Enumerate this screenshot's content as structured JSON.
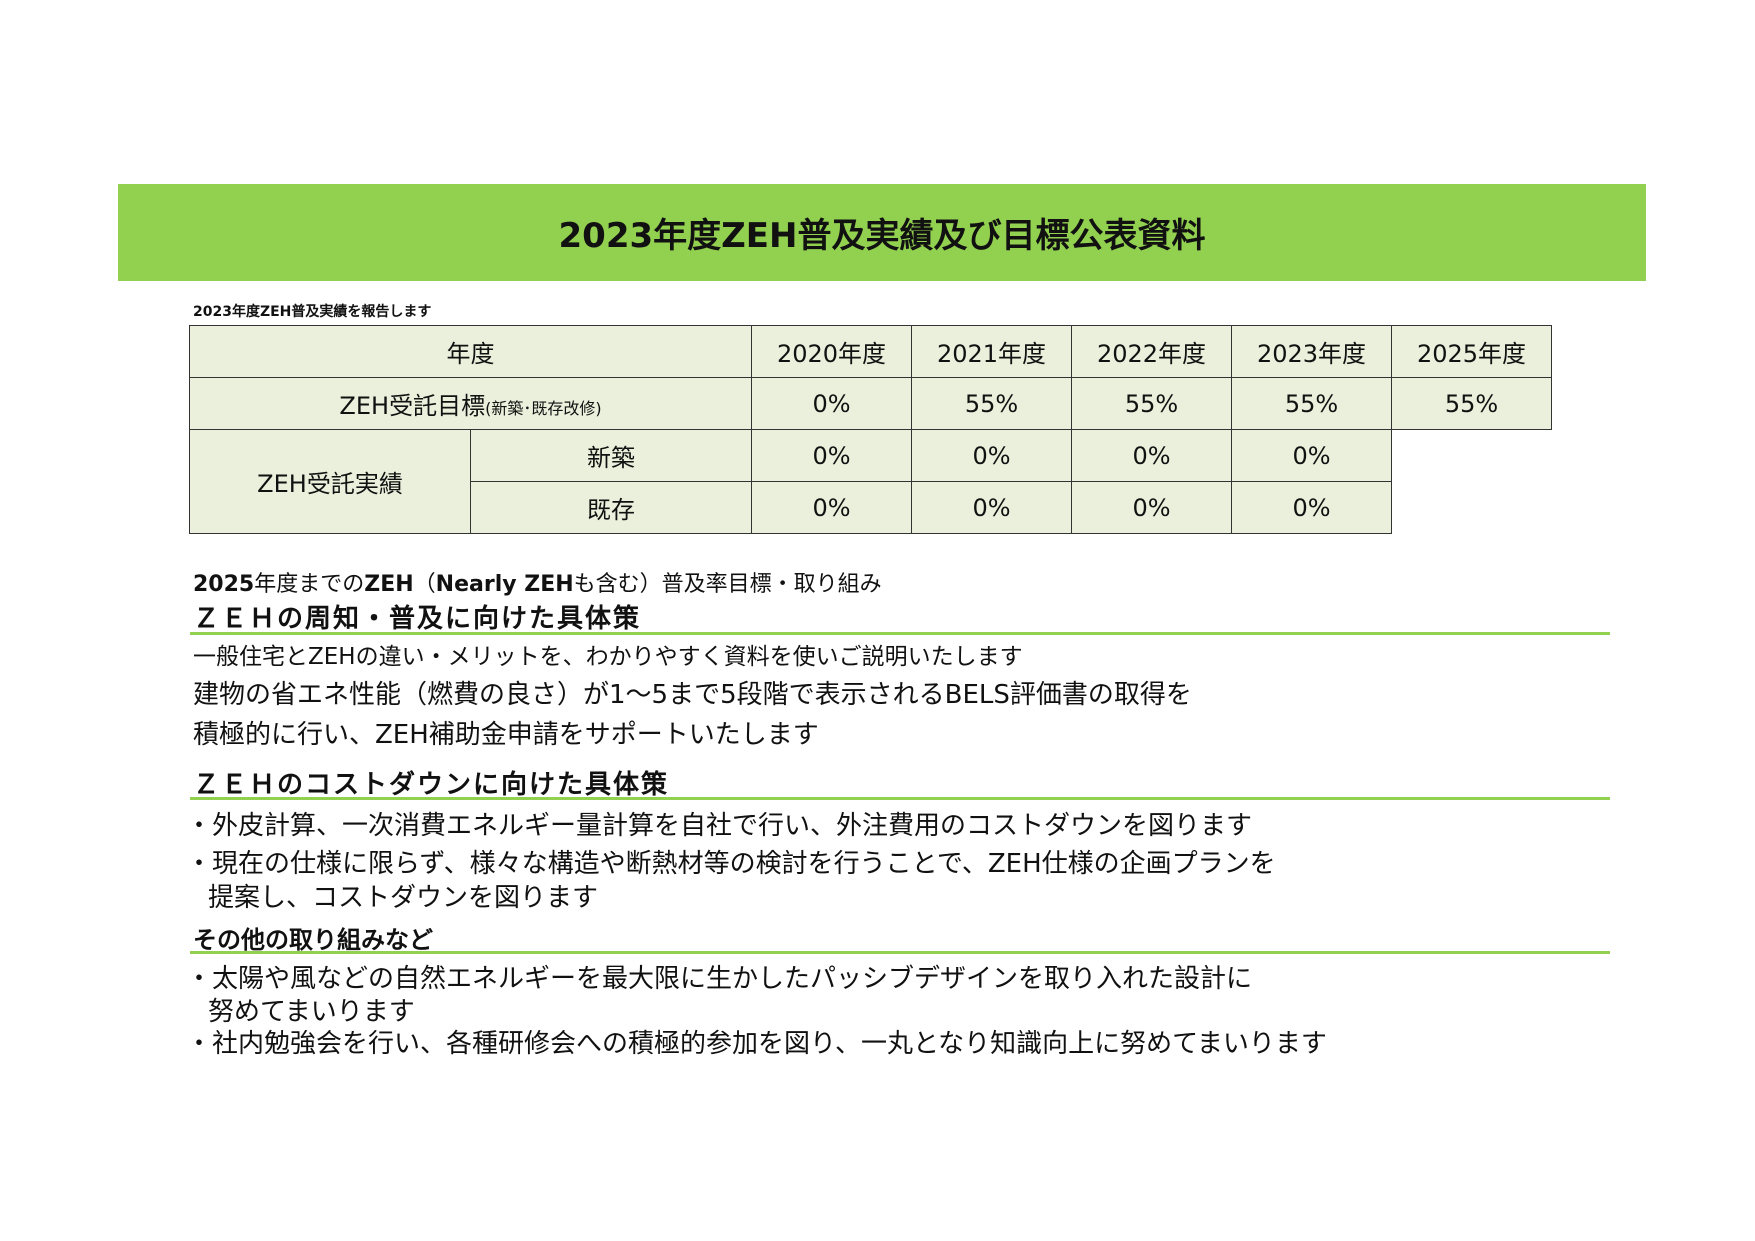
{
  "colors": {
    "accent_green": "#92d050",
    "table_fill": "#eaf0dc"
  },
  "banner": {
    "title": "2023年度ZEH普及実績及び目標公表資料"
  },
  "table_caption": "2023年度ZEH普及実績を報告します",
  "table": {
    "header_label": "年度",
    "years": [
      "2020年度",
      "2021年度",
      "2022年度",
      "2023年度",
      "2025年度"
    ],
    "target_label": "ZEH受託目標",
    "target_note": "(新築･既存改修)",
    "target_values": [
      "0%",
      "55%",
      "55%",
      "55%",
      "55%"
    ],
    "results_label": "ZEH受託実績",
    "results_rows": [
      {
        "label": "新築",
        "values": [
          "0%",
          "0%",
          "0%",
          "0%"
        ]
      },
      {
        "label": "既存",
        "values": [
          "0%",
          "0%",
          "0%",
          "0%"
        ]
      }
    ]
  },
  "goals_heading": {
    "p1": "2025",
    "p2": "年度までの",
    "p3": "ZEH",
    "p4": "（",
    "p5": "Nearly ZEH",
    "p6": "も含む）普及率目標・取り組み"
  },
  "sections": {
    "awareness": {
      "title": "ＺＥＨの周知・普及に向けた具体策",
      "lines": [
        "一般住宅とZEHの違い・メリットを、わかりやすく資料を使いご説明いたします",
        "建物の省エネ性能（燃費の良さ）が1～5まで5段階で表示されるBELS評価書の取得を",
        "積極的に行い、ZEH補助金申請をサポートいたします"
      ]
    },
    "cost": {
      "title": "ＺＥＨのコストダウンに向けた具体策",
      "lines": [
        "・外皮計算、一次消費エネルギー量計算を自社で行い、外注費用のコストダウンを図ります",
        "・現在の仕様に限らず、様々な構造や断熱材等の検討を行うことで、ZEH仕様の企画プランを",
        "提案し、コストダウンを図ります"
      ]
    },
    "other": {
      "title": "その他の取り組みなど",
      "lines": [
        "・太陽や風などの自然エネルギーを最大限に生かしたパッシブデザインを取り入れた設計に",
        "努めてまいります",
        "・社内勉強会を行い、各種研修会への積極的参加を図り、一丸となり知識向上に努めてまいります"
      ]
    }
  }
}
